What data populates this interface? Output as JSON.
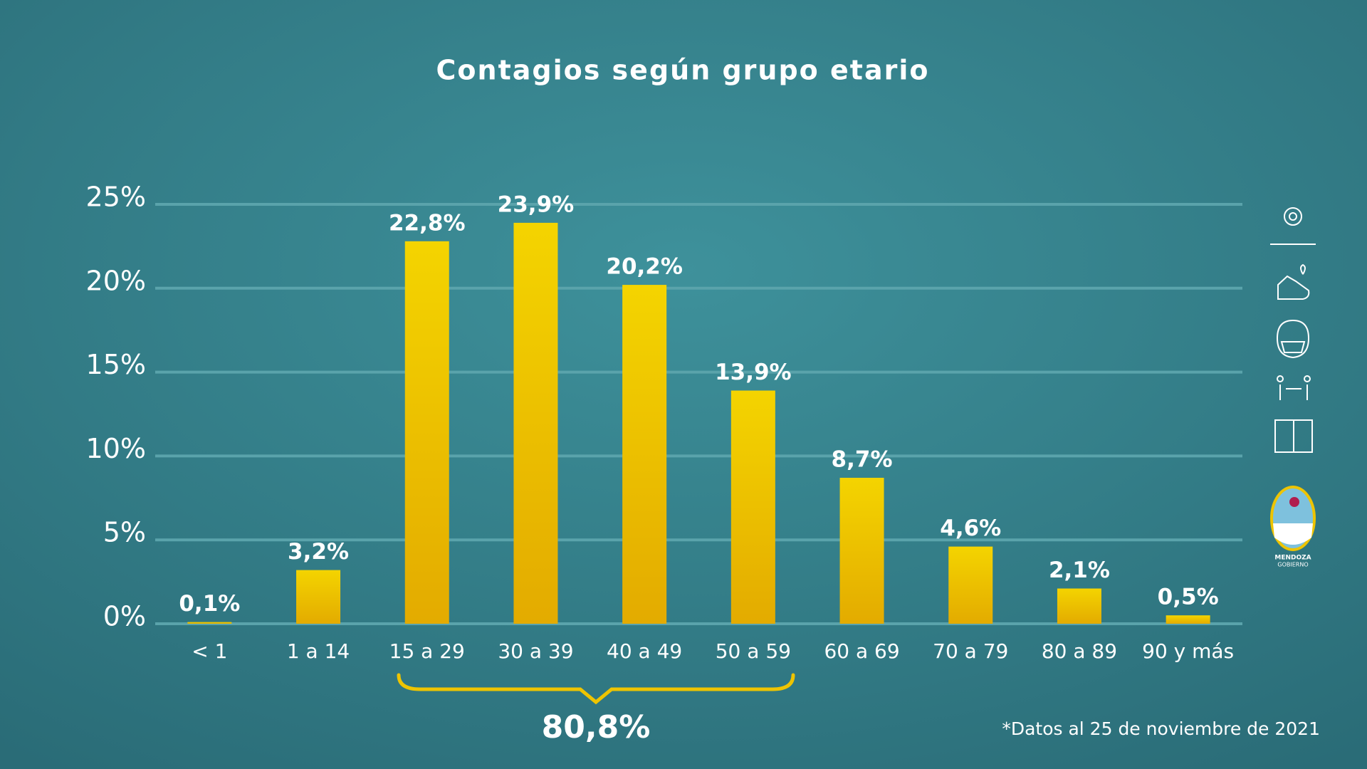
{
  "chart_data": {
    "type": "bar",
    "title": "Contagios según grupo etario",
    "categories": [
      "< 1",
      "1 a 14",
      "15 a 29",
      "30 a 39",
      "40 a 49",
      "50 a 59",
      "60 a 69",
      "70 a 79",
      "80 a 89",
      "90 y más"
    ],
    "values": [
      0.1,
      3.2,
      22.8,
      23.9,
      20.2,
      13.9,
      8.7,
      4.6,
      2.1,
      0.5
    ],
    "value_labels": [
      "0,1%",
      "3,2%",
      "22,8%",
      "23,9%",
      "20,2%",
      "13,9%",
      "8,7%",
      "4,6%",
      "2,1%",
      "0,5%"
    ],
    "color": "#eec400",
    "ylim": [
      0,
      25
    ],
    "yticks": [
      {
        "value": 0,
        "label": "0%"
      },
      {
        "value": 5,
        "label": "5%"
      },
      {
        "value": 10,
        "label": "10%"
      },
      {
        "value": 15,
        "label": "15%"
      },
      {
        "value": 20,
        "label": "20%"
      },
      {
        "value": 25,
        "label": "25%"
      }
    ],
    "grid": true,
    "annotation": "80,8%",
    "footnote": "*Datos al 25 de noviembre de 2021"
  },
  "branding": {
    "line1": "MENDOZA",
    "line2": "GOBIERNO"
  }
}
